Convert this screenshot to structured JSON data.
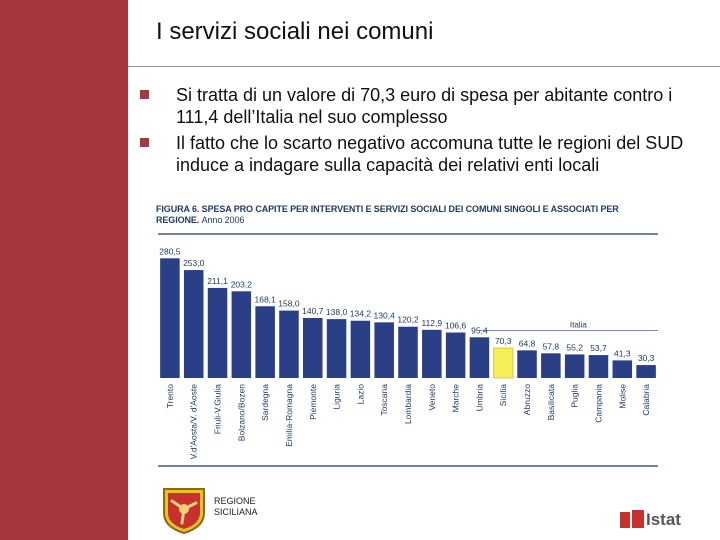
{
  "slide": {
    "title": "I servizi sociali nei comuni",
    "bullets": [
      "Si tratta di un valore di 70,3 euro di spesa  per abitante contro i 111,4  dell’Italia nel suo complesso",
      "Il fatto che lo scarto negativo accomuna tutte le regioni del SUD induce a indagare sulla capacità dei relativi enti locali"
    ]
  },
  "chart_title": {
    "line1": "FIGURA 6. SPESA PRO CAPITE PER INTERVENTI E SERVIZI SOCIALI DEI COMUNI SINGOLI E ASSOCIATI PER",
    "line2": "REGIONE.",
    "subtitle": "Anno 2006"
  },
  "chart_data": {
    "type": "bar",
    "categories": [
      "Trento",
      "V.d'Aosta/V. d'Aoste",
      "Friuli-V.Giulia",
      "Bolzano/Bozen",
      "Sardegna",
      "Emilia-Romagna",
      "Piemonte",
      "Liguria",
      "Lazio",
      "Toscana",
      "Lombardia",
      "Veneto",
      "Marche",
      "Umbria",
      "Sicilia",
      "Abruzzo",
      "Basilicata",
      "Puglia",
      "Campania",
      "Molise",
      "Calabria"
    ],
    "values": [
      280.5,
      253.0,
      211.1,
      203.2,
      168.1,
      158.0,
      140.7,
      138.0,
      134.2,
      130.4,
      120.2,
      112.9,
      106.6,
      95.4,
      70.3,
      64.8,
      57.8,
      55.2,
      53.7,
      41.3,
      30.3
    ],
    "value_labels": [
      "280,5",
      "253,0",
      "211,1",
      "203,2",
      "168,1",
      "158,0",
      "140,7",
      "138,0",
      "134,2",
      "130,4",
      "120,2",
      "112,9",
      "106,6",
      "95,4",
      "70,3",
      "64,8",
      "57,8",
      "55,2",
      "53,7",
      "41,3",
      "30,3"
    ],
    "highlight_category": "Sicilia",
    "reference_line": {
      "label": "Italia",
      "value": 111.4
    },
    "ylim": [
      0,
      300
    ],
    "colors": {
      "bar": "#2a3f86",
      "highlight": "#f5ef55",
      "reference": "#7a8fb8"
    }
  },
  "footer": {
    "region_line1": "REGIONE",
    "region_line2": "SICILIANA",
    "istat": "Istat"
  }
}
